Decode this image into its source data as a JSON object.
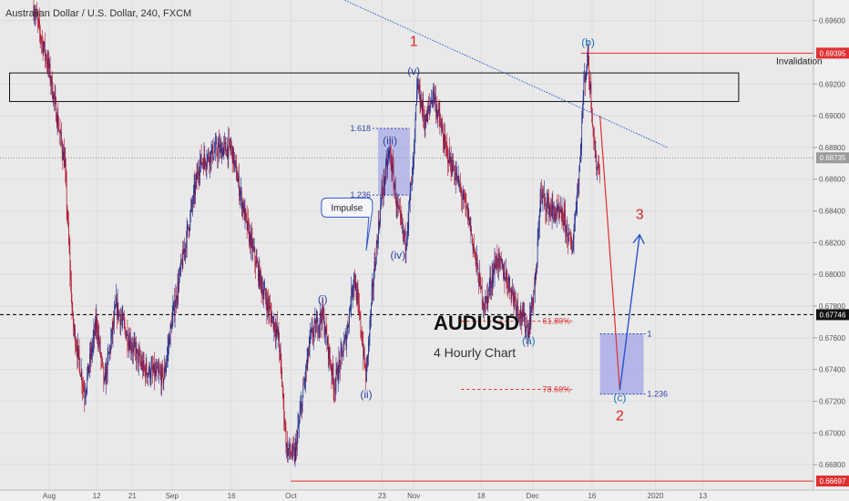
{
  "symbol_title": "Australian Dollar / U.S. Dollar, 240, FXCM",
  "colors": {
    "background": "#e9e9e9",
    "candle_up": "#1d2a8c",
    "candle_down": "#b0102a",
    "red_line": "#e03030",
    "blue_line": "#3355cc",
    "fib_box": "#8f95e6"
  },
  "chart_data": {
    "type": "candlestick",
    "instrument": "AUDUSD",
    "timeframe": "4 Hourly Chart",
    "ylim": [
      0.6664,
      0.6973
    ],
    "y_ticks": [
      "0.69600",
      "0.69200",
      "0.69000",
      "0.68800",
      "0.68600",
      "0.68400",
      "0.68200",
      "0.68000",
      "0.67800",
      "0.67600",
      "0.67400",
      "0.67200",
      "0.67000",
      "0.66800"
    ],
    "x_ticks": [
      "Aug",
      "12",
      "21",
      "Sep",
      "16",
      "Oct",
      "23",
      "Nov",
      "18",
      "Dec",
      "16",
      "2020",
      "13"
    ],
    "x_tick_days": [
      0,
      12,
      21,
      31,
      46,
      61,
      84,
      92,
      109,
      122,
      137,
      153,
      165
    ],
    "price_path": [
      {
        "day": -4,
        "price": 0.697
      },
      {
        "day": -2,
        "price": 0.695
      },
      {
        "day": 0,
        "price": 0.693
      },
      {
        "day": 4,
        "price": 0.687
      },
      {
        "day": 6,
        "price": 0.677
      },
      {
        "day": 9,
        "price": 0.6725
      },
      {
        "day": 12,
        "price": 0.677
      },
      {
        "day": 14,
        "price": 0.673
      },
      {
        "day": 17,
        "price": 0.678
      },
      {
        "day": 20,
        "price": 0.676
      },
      {
        "day": 24,
        "price": 0.674
      },
      {
        "day": 29,
        "price": 0.6735
      },
      {
        "day": 31,
        "price": 0.677
      },
      {
        "day": 38,
        "price": 0.687
      },
      {
        "day": 42,
        "price": 0.6878
      },
      {
        "day": 46,
        "price": 0.688
      },
      {
        "day": 50,
        "price": 0.683
      },
      {
        "day": 54,
        "price": 0.679
      },
      {
        "day": 58,
        "price": 0.676
      },
      {
        "day": 60,
        "price": 0.669
      },
      {
        "day": 62,
        "price": 0.6685
      },
      {
        "day": 66,
        "price": 0.676
      },
      {
        "day": 69,
        "price": 0.6775
      },
      {
        "day": 72,
        "price": 0.673
      },
      {
        "day": 75,
        "price": 0.676
      },
      {
        "day": 77,
        "price": 0.68
      },
      {
        "day": 79,
        "price": 0.676
      },
      {
        "day": 80,
        "price": 0.6735
      },
      {
        "day": 82,
        "price": 0.68
      },
      {
        "day": 84,
        "price": 0.685
      },
      {
        "day": 86,
        "price": 0.6878
      },
      {
        "day": 88,
        "price": 0.684
      },
      {
        "day": 90,
        "price": 0.682
      },
      {
        "day": 92,
        "price": 0.687
      },
      {
        "day": 93,
        "price": 0.692
      },
      {
        "day": 95,
        "price": 0.6895
      },
      {
        "day": 97,
        "price": 0.6915
      },
      {
        "day": 100,
        "price": 0.688
      },
      {
        "day": 103,
        "price": 0.686
      },
      {
        "day": 106,
        "price": 0.6835
      },
      {
        "day": 109,
        "price": 0.679
      },
      {
        "day": 110,
        "price": 0.678
      },
      {
        "day": 113,
        "price": 0.681
      },
      {
        "day": 116,
        "price": 0.6795
      },
      {
        "day": 119,
        "price": 0.6775
      },
      {
        "day": 121,
        "price": 0.6765
      },
      {
        "day": 123,
        "price": 0.68
      },
      {
        "day": 124,
        "price": 0.685
      },
      {
        "day": 127,
        "price": 0.684
      },
      {
        "day": 130,
        "price": 0.6835
      },
      {
        "day": 132,
        "price": 0.6815
      },
      {
        "day": 134,
        "price": 0.687
      },
      {
        "day": 135,
        "price": 0.692
      },
      {
        "day": 136,
        "price": 0.6938
      },
      {
        "day": 137,
        "price": 0.6905
      },
      {
        "day": 138,
        "price": 0.687
      },
      {
        "day": 139,
        "price": 0.6868
      }
    ],
    "projection": [
      {
        "day": 139,
        "price": 0.69
      },
      {
        "day": 144,
        "price": 0.6727
      },
      {
        "day": 149,
        "price": 0.6825
      }
    ],
    "levels": [
      {
        "price": 0.69395,
        "label": "0.69395",
        "color": "#e03030"
      },
      {
        "price": 0.68735,
        "label": "0.68735",
        "color": "#888888"
      },
      {
        "price": 0.67746,
        "label": "0.67746",
        "color": "#111111"
      },
      {
        "price": 0.66697,
        "label": "0.66697",
        "color": "#e03030"
      }
    ],
    "invalidation_text": "Invalidation",
    "box_range": {
      "day_from": -10,
      "day_to": 174,
      "price_low": 0.6909,
      "price_high": 0.6927
    },
    "trendline": {
      "from": {
        "day": 64,
        "price": 0.6985
      },
      "to": {
        "day": 156,
        "price": 0.688
      }
    },
    "wave_labels": [
      {
        "text": "1",
        "day": 92,
        "price": 0.6944,
        "style": "red-big"
      },
      {
        "text": "(v)",
        "day": 92,
        "price": 0.6926,
        "style": "blue"
      },
      {
        "text": "(iii)",
        "day": 86,
        "price": 0.6882,
        "style": "blue"
      },
      {
        "text": "(iv)",
        "day": 88,
        "price": 0.681,
        "style": "blue"
      },
      {
        "text": "(i)",
        "day": 69,
        "price": 0.6782,
        "style": "blue"
      },
      {
        "text": "(ii)",
        "day": 80,
        "price": 0.6722,
        "style": "blue"
      },
      {
        "text": "(b)",
        "day": 136,
        "price": 0.6944,
        "style": "teal"
      },
      {
        "text": "(a)",
        "day": 121,
        "price": 0.6756,
        "style": "teal"
      },
      {
        "text": "(c)",
        "day": 144,
        "price": 0.672,
        "style": "teal"
      },
      {
        "text": "2",
        "day": 144,
        "price": 0.6708,
        "style": "red-big"
      },
      {
        "text": "3",
        "day": 149,
        "price": 0.6835,
        "style": "red-big"
      }
    ],
    "fib_upper": {
      "day_from": 83,
      "day_to": 91,
      "price_top": 0.6892,
      "price_bottom": 0.685,
      "top_label": "1.618",
      "bottom_label": "1.236"
    },
    "fib_lower": {
      "day_from": 139,
      "day_to": 150,
      "price_top": 0.67625,
      "price_bottom": 0.67245,
      "top_label": "1",
      "bottom_label": "1.236"
    },
    "fib_red_lines": [
      {
        "price": 0.67705,
        "day_from": 104,
        "day_to": 132,
        "label": "61.80%"
      },
      {
        "price": 0.67275,
        "day_from": 104,
        "day_to": 132,
        "label": "78.60%"
      }
    ],
    "impulse_callout": {
      "text": "Impulse",
      "day": 71,
      "price": 0.6843,
      "pointer_day": 80,
      "pointer_price": 0.6815
    },
    "annotation_title": "AUDUSD",
    "annotation_subtitle": "4 Hourly Chart",
    "annotation_day": 97,
    "annotation_price": 0.6765
  }
}
